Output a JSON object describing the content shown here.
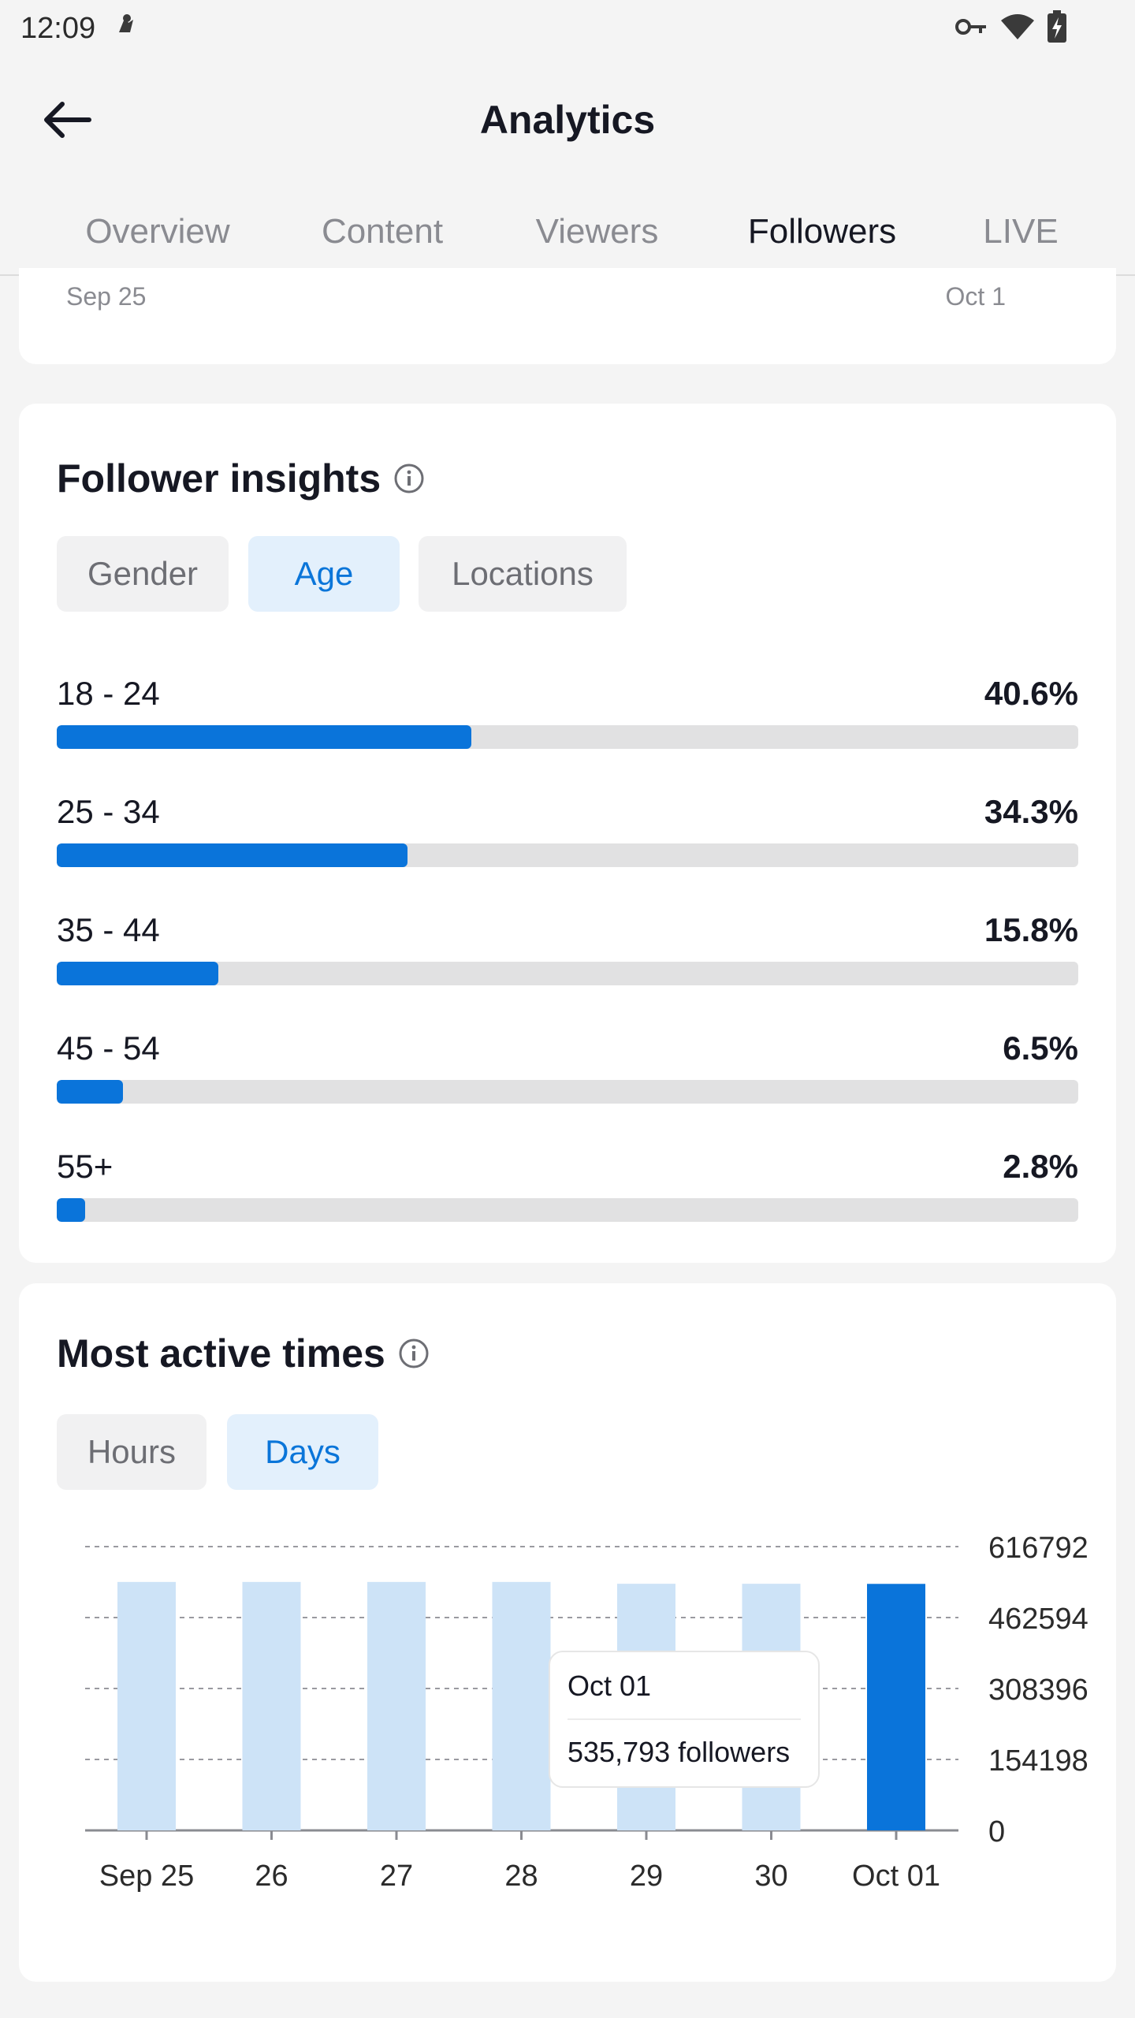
{
  "status": {
    "time": "12:09"
  },
  "header": {
    "title": "Analytics"
  },
  "tabs": [
    {
      "label": "Overview"
    },
    {
      "label": "Content"
    },
    {
      "label": "Viewers"
    },
    {
      "label": "Followers"
    },
    {
      "label": "LIVE"
    }
  ],
  "top_card": {
    "start_date": "Sep 25",
    "end_date": "Oct 1"
  },
  "insights": {
    "title": "Follower insights",
    "chips": [
      {
        "label": "Gender"
      },
      {
        "label": "Age"
      },
      {
        "label": "Locations"
      }
    ],
    "active_chip": "Age",
    "ages": [
      {
        "label": "18 - 24",
        "pct": "40.6%",
        "value": 40.6
      },
      {
        "label": "25 - 34",
        "pct": "34.3%",
        "value": 34.3
      },
      {
        "label": "35 - 44",
        "pct": "15.8%",
        "value": 15.8
      },
      {
        "label": "45 - 54",
        "pct": "6.5%",
        "value": 6.5
      },
      {
        "label": "55+",
        "pct": "2.8%",
        "value": 2.8
      }
    ]
  },
  "active_times": {
    "title": "Most active times",
    "chips": [
      {
        "label": "Hours"
      },
      {
        "label": "Days"
      }
    ],
    "active_chip": "Days",
    "tooltip": {
      "date": "Oct 01",
      "value": "535,793 followers"
    }
  },
  "colors": {
    "accent": "#0a74da",
    "bar_light": "#cde3f7",
    "bar_dark": "#0a74da"
  },
  "chart_data": {
    "type": "bar",
    "categories": [
      "Sep 25",
      "26",
      "27",
      "28",
      "29",
      "30",
      "Oct 01"
    ],
    "values": [
      540000,
      540000,
      540000,
      540000,
      536000,
      536000,
      535793
    ],
    "highlighted": "Oct 01",
    "ylim": [
      0,
      616792
    ],
    "yticks": [
      "616792",
      "462594",
      "308396",
      "154198",
      "0"
    ],
    "grid": true
  }
}
